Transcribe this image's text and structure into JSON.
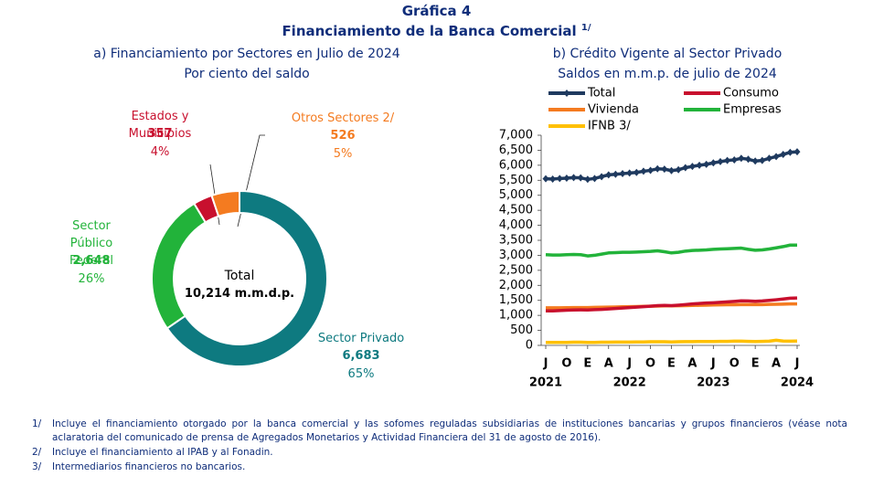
{
  "title": "Gráfica 4",
  "subtitle": "Financiamiento de la Banca Comercial",
  "subtitle_note": "1/",
  "chart_data": [
    {
      "type": "pie",
      "title": "a) Financiamiento por Sectores en Julio de 2024",
      "subtitle": "Por ciento del saldo",
      "categories": [
        "Sector Privado",
        "Sector Público Federal",
        "Estados y Municipios",
        "Otros Sectores 2/"
      ],
      "values": [
        6683,
        2648,
        357,
        526
      ],
      "value_labels": [
        "6,683",
        "2,648",
        "357",
        "526"
      ],
      "shares": [
        65,
        26,
        4,
        5
      ],
      "share_labels": [
        "65%",
        "26%",
        "4%",
        "5%"
      ],
      "colors": [
        "#0e7a80",
        "#22b33a",
        "#c8102e",
        "#f47b20"
      ],
      "center_text": [
        "Total",
        "10,214 m.m.d.p."
      ]
    },
    {
      "type": "line",
      "title": "b) Crédito Vigente al Sector Privado",
      "subtitle": "Saldos en m.m.p. de julio de 2024",
      "x": [
        "2021-07",
        "2021-08",
        "2021-09",
        "2021-10",
        "2021-11",
        "2021-12",
        "2022-01",
        "2022-02",
        "2022-03",
        "2022-04",
        "2022-05",
        "2022-06",
        "2022-07",
        "2022-08",
        "2022-09",
        "2022-10",
        "2022-11",
        "2022-12",
        "2023-01",
        "2023-02",
        "2023-03",
        "2023-04",
        "2023-05",
        "2023-06",
        "2023-07",
        "2023-08",
        "2023-09",
        "2023-10",
        "2023-11",
        "2023-12",
        "2024-01",
        "2024-02",
        "2024-03",
        "2024-04",
        "2024-05",
        "2024-06",
        "2024-07"
      ],
      "series": [
        {
          "name": "Total",
          "color": "#1f3a5f",
          "values": [
            5550,
            5540,
            5560,
            5570,
            5590,
            5580,
            5530,
            5560,
            5620,
            5680,
            5700,
            5720,
            5740,
            5760,
            5800,
            5830,
            5880,
            5870,
            5820,
            5850,
            5920,
            5960,
            6000,
            6030,
            6080,
            6120,
            6160,
            6180,
            6230,
            6200,
            6140,
            6160,
            6230,
            6290,
            6360,
            6430,
            6450
          ]
        },
        {
          "name": "Consumo",
          "color": "#c8102e",
          "values": [
            1150,
            1150,
            1160,
            1170,
            1180,
            1185,
            1180,
            1190,
            1200,
            1215,
            1230,
            1245,
            1260,
            1275,
            1290,
            1305,
            1325,
            1330,
            1325,
            1340,
            1360,
            1380,
            1395,
            1410,
            1420,
            1435,
            1450,
            1465,
            1485,
            1480,
            1470,
            1480,
            1500,
            1520,
            1545,
            1570,
            1580
          ]
        },
        {
          "name": "Vivienda",
          "color": "#f47b20",
          "values": [
            1250,
            1250,
            1250,
            1255,
            1260,
            1260,
            1260,
            1265,
            1270,
            1275,
            1280,
            1285,
            1290,
            1295,
            1300,
            1305,
            1310,
            1315,
            1315,
            1320,
            1325,
            1330,
            1335,
            1340,
            1345,
            1350,
            1355,
            1355,
            1360,
            1360,
            1360,
            1360,
            1365,
            1370,
            1375,
            1380,
            1380
          ]
        },
        {
          "name": "Empresas",
          "color": "#22b33a",
          "values": [
            3020,
            3010,
            3010,
            3020,
            3030,
            3020,
            2980,
            3000,
            3040,
            3080,
            3090,
            3100,
            3100,
            3110,
            3120,
            3130,
            3150,
            3120,
            3080,
            3100,
            3140,
            3160,
            3170,
            3180,
            3200,
            3210,
            3220,
            3230,
            3240,
            3200,
            3170,
            3180,
            3210,
            3250,
            3290,
            3340,
            3340
          ]
        },
        {
          "name": "IFNB 3/",
          "color": "#ffc000",
          "values": [
            100,
            100,
            100,
            100,
            105,
            105,
            100,
            100,
            105,
            105,
            110,
            110,
            110,
            115,
            115,
            120,
            120,
            120,
            115,
            120,
            125,
            125,
            130,
            130,
            130,
            135,
            135,
            140,
            140,
            135,
            130,
            135,
            140,
            170,
            145,
            140,
            145
          ]
        }
      ],
      "ylim": [
        0,
        7000
      ],
      "yticks": [
        0,
        {
          "value": 500,
          "label": "500"
        },
        {
          "value": 1000,
          "label": "1,000"
        },
        {
          "value": 1500,
          "label": "1,500"
        },
        {
          "value": 2000,
          "label": "2,000"
        },
        {
          "value": 2500,
          "label": "2,500"
        },
        {
          "value": 3000,
          "label": "3,000"
        },
        {
          "value": 3500,
          "label": "3,500"
        },
        {
          "value": 4000,
          "label": "4,000"
        },
        {
          "value": 4500,
          "label": "4,500"
        },
        {
          "value": 5000,
          "label": "5,000"
        },
        {
          "value": 5500,
          "label": "5,500"
        },
        {
          "value": 6000,
          "label": "6,000"
        },
        {
          "value": 6500,
          "label": "6,500"
        },
        {
          "value": 7000,
          "label": "7,000"
        }
      ],
      "xticks": [
        {
          "value": "2021-07",
          "label": "J"
        },
        {
          "value": "2021-10",
          "label": "O"
        },
        {
          "value": "2022-01",
          "label": "E"
        },
        {
          "value": "2022-04",
          "label": "A"
        },
        {
          "value": "2022-07",
          "label": "J"
        },
        {
          "value": "2022-10",
          "label": "O"
        },
        {
          "value": "2023-01",
          "label": "E"
        },
        {
          "value": "2023-04",
          "label": "A"
        },
        {
          "value": "2023-07",
          "label": "J"
        },
        {
          "value": "2023-10",
          "label": "O"
        },
        {
          "value": "2024-01",
          "label": "E"
        },
        {
          "value": "2024-04",
          "label": "A"
        },
        {
          "value": "2024-07",
          "label": "J"
        }
      ],
      "year_ticks": [
        {
          "value": "2021-07",
          "label": "2021"
        },
        {
          "value": "2022-07",
          "label": "2022"
        },
        {
          "value": "2023-07",
          "label": "2023"
        },
        {
          "value": "2024-07",
          "label": "2024"
        }
      ],
      "grid": false
    }
  ],
  "footnotes": [
    {
      "mark": "1/",
      "text": "Incluye el financiamiento otorgado por la banca comercial y las sofomes reguladas subsidiarias de instituciones bancarias y grupos financieros (véase nota aclaratoria del comunicado de prensa de Agregados Monetarios y Actividad Financiera del 31 de agosto de 2016)."
    },
    {
      "mark": "2/",
      "text": "Incluye el financiamiento al IPAB y al Fonadin."
    },
    {
      "mark": "3/",
      "text": "Intermediarios financieros no bancarios."
    }
  ]
}
